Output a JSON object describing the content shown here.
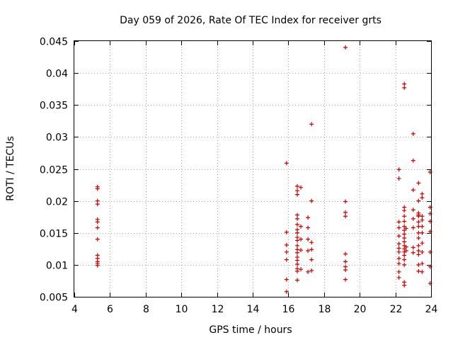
{
  "chart_data": {
    "type": "scatter",
    "title": "Day 059 of 2026, Rate Of TEC Index for receiver grts",
    "xlabel": "GPS time / hours",
    "ylabel": "ROTI / TECUs",
    "xlim": [
      4,
      24
    ],
    "ylim": [
      0.005,
      0.045
    ],
    "x_ticks": [
      "4",
      "6",
      "8",
      "10",
      "12",
      "14",
      "16",
      "18",
      "20",
      "22",
      "24"
    ],
    "y_ticks": [
      "0.005",
      "0.01",
      "0.015",
      "0.02",
      "0.025",
      "0.03",
      "0.035",
      "0.04",
      "0.045"
    ],
    "grid": true,
    "marker": "+",
    "color": "#cc0000",
    "points": [
      {
        "x": 5.3,
        "y": 0.0222
      },
      {
        "x": 5.3,
        "y": 0.0219
      },
      {
        "x": 5.3,
        "y": 0.02
      },
      {
        "x": 5.3,
        "y": 0.0195
      },
      {
        "x": 5.3,
        "y": 0.0171
      },
      {
        "x": 5.3,
        "y": 0.0167
      },
      {
        "x": 5.3,
        "y": 0.0158
      },
      {
        "x": 5.3,
        "y": 0.014
      },
      {
        "x": 5.3,
        "y": 0.0115
      },
      {
        "x": 5.3,
        "y": 0.011
      },
      {
        "x": 5.3,
        "y": 0.0105
      },
      {
        "x": 5.3,
        "y": 0.0102
      },
      {
        "x": 5.3,
        "y": 0.0099
      },
      {
        "x": 15.9,
        "y": 0.0259
      },
      {
        "x": 15.9,
        "y": 0.0151
      },
      {
        "x": 15.9,
        "y": 0.0131
      },
      {
        "x": 15.9,
        "y": 0.012
      },
      {
        "x": 15.9,
        "y": 0.0108
      },
      {
        "x": 15.9,
        "y": 0.0077
      },
      {
        "x": 15.9,
        "y": 0.0058
      },
      {
        "x": 16.5,
        "y": 0.0223
      },
      {
        "x": 16.5,
        "y": 0.0216
      },
      {
        "x": 16.5,
        "y": 0.021
      },
      {
        "x": 16.5,
        "y": 0.0178
      },
      {
        "x": 16.5,
        "y": 0.0172
      },
      {
        "x": 16.5,
        "y": 0.0163
      },
      {
        "x": 16.5,
        "y": 0.0155
      },
      {
        "x": 16.5,
        "y": 0.015
      },
      {
        "x": 16.5,
        "y": 0.0143
      },
      {
        "x": 16.5,
        "y": 0.0138
      },
      {
        "x": 16.5,
        "y": 0.013
      },
      {
        "x": 16.5,
        "y": 0.0124
      },
      {
        "x": 16.5,
        "y": 0.0119
      },
      {
        "x": 16.5,
        "y": 0.0112
      },
      {
        "x": 16.5,
        "y": 0.0107
      },
      {
        "x": 16.5,
        "y": 0.0101
      },
      {
        "x": 16.5,
        "y": 0.0094
      },
      {
        "x": 16.5,
        "y": 0.009
      },
      {
        "x": 16.5,
        "y": 0.0076
      },
      {
        "x": 16.7,
        "y": 0.0221
      },
      {
        "x": 16.7,
        "y": 0.016
      },
      {
        "x": 16.7,
        "y": 0.014
      },
      {
        "x": 16.7,
        "y": 0.0123
      },
      {
        "x": 16.7,
        "y": 0.0093
      },
      {
        "x": 17.1,
        "y": 0.0174
      },
      {
        "x": 17.1,
        "y": 0.0158
      },
      {
        "x": 17.1,
        "y": 0.014
      },
      {
        "x": 17.1,
        "y": 0.0122
      },
      {
        "x": 17.1,
        "y": 0.0089
      },
      {
        "x": 17.3,
        "y": 0.032
      },
      {
        "x": 17.3,
        "y": 0.02
      },
      {
        "x": 17.3,
        "y": 0.0135
      },
      {
        "x": 17.3,
        "y": 0.0124
      },
      {
        "x": 17.3,
        "y": 0.0108
      },
      {
        "x": 17.3,
        "y": 0.0091
      },
      {
        "x": 19.2,
        "y": 0.044
      },
      {
        "x": 19.2,
        "y": 0.0199
      },
      {
        "x": 19.2,
        "y": 0.0182
      },
      {
        "x": 19.2,
        "y": 0.0176
      },
      {
        "x": 19.2,
        "y": 0.0117
      },
      {
        "x": 19.2,
        "y": 0.0105
      },
      {
        "x": 19.2,
        "y": 0.0097
      },
      {
        "x": 19.2,
        "y": 0.0092
      },
      {
        "x": 19.2,
        "y": 0.0077
      },
      {
        "x": 22.2,
        "y": 0.0249
      },
      {
        "x": 22.2,
        "y": 0.0235
      },
      {
        "x": 22.2,
        "y": 0.0167
      },
      {
        "x": 22.2,
        "y": 0.0158
      },
      {
        "x": 22.2,
        "y": 0.0145
      },
      {
        "x": 22.2,
        "y": 0.0133
      },
      {
        "x": 22.2,
        "y": 0.0126
      },
      {
        "x": 22.2,
        "y": 0.012
      },
      {
        "x": 22.2,
        "y": 0.011
      },
      {
        "x": 22.2,
        "y": 0.0102
      },
      {
        "x": 22.2,
        "y": 0.0089
      },
      {
        "x": 22.2,
        "y": 0.008
      },
      {
        "x": 22.5,
        "y": 0.0383
      },
      {
        "x": 22.5,
        "y": 0.0377
      },
      {
        "x": 22.5,
        "y": 0.019
      },
      {
        "x": 22.5,
        "y": 0.0185
      },
      {
        "x": 22.5,
        "y": 0.0176
      },
      {
        "x": 22.5,
        "y": 0.0168
      },
      {
        "x": 22.5,
        "y": 0.016
      },
      {
        "x": 22.5,
        "y": 0.0154
      },
      {
        "x": 22.5,
        "y": 0.0148
      },
      {
        "x": 22.5,
        "y": 0.0142
      },
      {
        "x": 22.5,
        "y": 0.0136
      },
      {
        "x": 22.5,
        "y": 0.013
      },
      {
        "x": 22.5,
        "y": 0.0125
      },
      {
        "x": 22.5,
        "y": 0.012
      },
      {
        "x": 22.5,
        "y": 0.0115
      },
      {
        "x": 22.5,
        "y": 0.0108
      },
      {
        "x": 22.5,
        "y": 0.01
      },
      {
        "x": 22.5,
        "y": 0.0073
      },
      {
        "x": 22.5,
        "y": 0.0068
      },
      {
        "x": 22.6,
        "y": 0.0157
      },
      {
        "x": 22.6,
        "y": 0.0128
      },
      {
        "x": 22.6,
        "y": 0.0122
      },
      {
        "x": 23.0,
        "y": 0.0305
      },
      {
        "x": 23.0,
        "y": 0.0263
      },
      {
        "x": 23.0,
        "y": 0.0217
      },
      {
        "x": 23.0,
        "y": 0.0186
      },
      {
        "x": 23.0,
        "y": 0.0172
      },
      {
        "x": 23.0,
        "y": 0.0158
      },
      {
        "x": 23.0,
        "y": 0.0127
      },
      {
        "x": 23.0,
        "y": 0.0119
      },
      {
        "x": 23.3,
        "y": 0.0228
      },
      {
        "x": 23.3,
        "y": 0.02
      },
      {
        "x": 23.3,
        "y": 0.0181
      },
      {
        "x": 23.3,
        "y": 0.0178
      },
      {
        "x": 23.3,
        "y": 0.0176
      },
      {
        "x": 23.3,
        "y": 0.0167
      },
      {
        "x": 23.3,
        "y": 0.016
      },
      {
        "x": 23.3,
        "y": 0.015
      },
      {
        "x": 23.3,
        "y": 0.0142
      },
      {
        "x": 23.3,
        "y": 0.013
      },
      {
        "x": 23.3,
        "y": 0.0122
      },
      {
        "x": 23.3,
        "y": 0.0116
      },
      {
        "x": 23.3,
        "y": 0.01
      },
      {
        "x": 23.3,
        "y": 0.009
      },
      {
        "x": 23.5,
        "y": 0.0211
      },
      {
        "x": 23.5,
        "y": 0.0205
      },
      {
        "x": 23.5,
        "y": 0.0176
      },
      {
        "x": 23.5,
        "y": 0.017
      },
      {
        "x": 23.5,
        "y": 0.016
      },
      {
        "x": 23.5,
        "y": 0.015
      },
      {
        "x": 23.5,
        "y": 0.0134
      },
      {
        "x": 23.5,
        "y": 0.012
      },
      {
        "x": 23.5,
        "y": 0.0102
      },
      {
        "x": 23.5,
        "y": 0.0089
      },
      {
        "x": 23.95,
        "y": 0.0245
      },
      {
        "x": 23.95,
        "y": 0.019
      },
      {
        "x": 23.95,
        "y": 0.018
      },
      {
        "x": 23.95,
        "y": 0.0168
      },
      {
        "x": 23.95,
        "y": 0.0152
      },
      {
        "x": 23.95,
        "y": 0.012
      },
      {
        "x": 23.95,
        "y": 0.0097
      },
      {
        "x": 23.95,
        "y": 0.0071
      }
    ]
  }
}
